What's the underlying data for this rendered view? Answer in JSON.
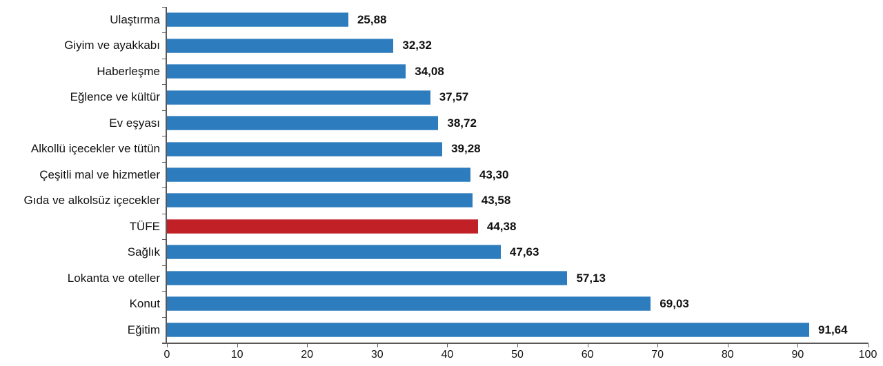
{
  "chart_data": {
    "type": "bar",
    "orientation": "horizontal",
    "title": "",
    "xlabel": "",
    "ylabel": "",
    "grid": false,
    "legend": "none",
    "xlim": [
      0,
      100
    ],
    "x_ticks": [
      0,
      10,
      20,
      30,
      40,
      50,
      60,
      70,
      80,
      90,
      100
    ],
    "x_tick_labels": [
      "0",
      "10",
      "20",
      "30",
      "40",
      "50",
      "60",
      "70",
      "80",
      "90",
      "100"
    ],
    "categories": [
      "Ulaştırma",
      "Giyim ve ayakkabı",
      "Haberleşme",
      "Eğlence ve kültür",
      "Ev eşyası",
      "Alkollü içecekler ve tütün",
      "Çeşitli mal ve hizmetler",
      "Gıda ve alkolsüz içecekler",
      "TÜFE",
      "Sağlık",
      "Lokanta ve oteller",
      "Konut",
      "Eğitim"
    ],
    "values": [
      25.88,
      32.32,
      34.08,
      37.57,
      38.72,
      39.28,
      43.3,
      43.58,
      44.38,
      47.63,
      57.13,
      69.03,
      91.64
    ],
    "value_labels": [
      "25,88",
      "32,32",
      "34,08",
      "37,57",
      "38,72",
      "39,28",
      "43,30",
      "43,58",
      "44,38",
      "47,63",
      "57,13",
      "69,03",
      "91,64"
    ],
    "highlight_category": "TÜFE",
    "colors": {
      "bar": "#2d7cbe",
      "highlight": "#c02026",
      "axis": "#595959",
      "text": "#111111"
    }
  }
}
